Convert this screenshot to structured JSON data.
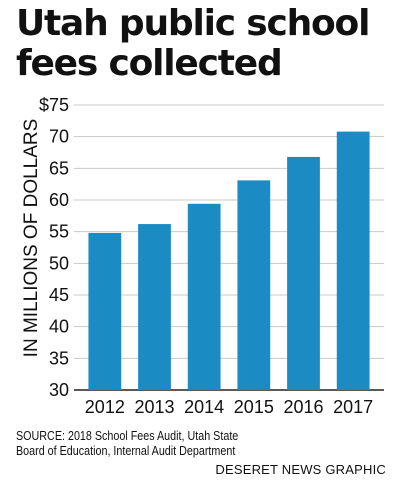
{
  "title_lines": [
    "Utah public school",
    "fees collected"
  ],
  "chart_data": {
    "type": "bar",
    "categories": [
      "2012",
      "2013",
      "2014",
      "2015",
      "2016",
      "2017"
    ],
    "values": [
      54.8,
      56.2,
      59.4,
      63.1,
      66.8,
      70.8
    ],
    "ylabel": "IN MILLIONS OF DOLLARS",
    "ylim": [
      30,
      75
    ],
    "y_ticks": [
      30,
      35,
      40,
      45,
      50,
      55,
      60,
      65,
      70,
      75
    ],
    "y_tick_labels": [
      "30",
      "35",
      "40",
      "45",
      "50",
      "55",
      "60",
      "65",
      "70",
      "$75"
    ],
    "grid": true,
    "bar_color": "#1b8bc4"
  },
  "source_lines": [
    "SOURCE: 2018 School Fees Audit, Utah State",
    "Board of Education, Internal Audit Department"
  ],
  "credit": "DESERET NEWS GRAPHIC"
}
